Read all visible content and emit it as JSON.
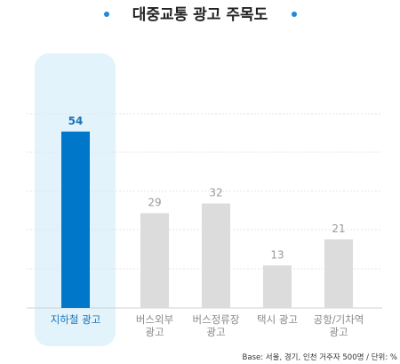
{
  "chart_data": {
    "type": "bar",
    "title": "대중교통 광고 주목도",
    "categories": [
      [
        "지하철 광고"
      ],
      [
        "버스외부",
        "광고"
      ],
      [
        "버스정류장",
        "광고"
      ],
      [
        "택시 광고"
      ],
      [
        "공항/기차역",
        "광고"
      ]
    ],
    "values": [
      54,
      29,
      32,
      13,
      21
    ],
    "highlight_index": 0,
    "grid": "dashed",
    "footnote": "Base: 서울, 경기, 인천 거주자 500명 / 단위: %"
  },
  "colors": {
    "highlight_bar": "#0077c8",
    "highlight_value": "#1a73b8",
    "highlight_category": "#1a73b8",
    "highlight_panel": "#e3f3fc",
    "bar": "#dcdcdc",
    "value": "#9a9a9a",
    "category": "#8a8a8a",
    "title_dot": "#1e88d9",
    "grid": "#e6e6e6",
    "baseline": "#d0d0d0"
  }
}
